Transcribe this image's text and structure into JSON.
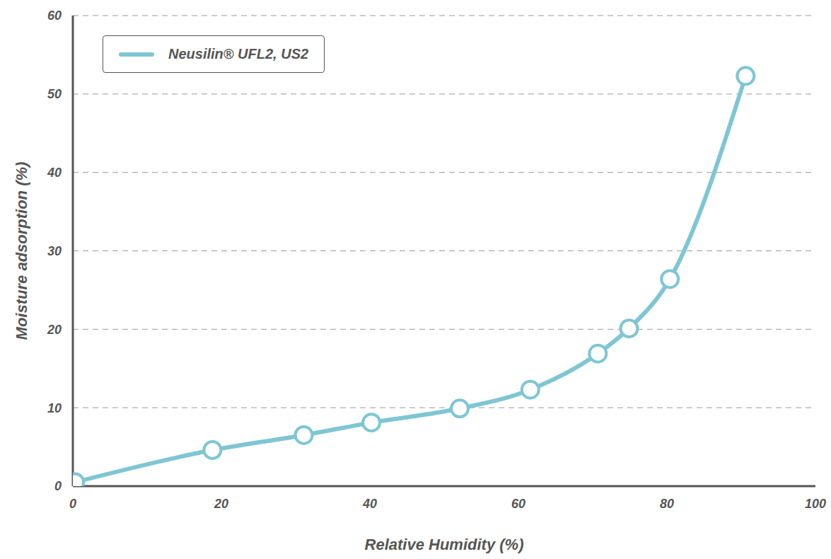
{
  "chart_data": {
    "type": "line",
    "x_label": "Relative Humidity (%)",
    "y_label": "Moisture adsorption (%)",
    "x": [
      0.3,
      18.8,
      31.1,
      40.2,
      52.1,
      61.6,
      70.7,
      74.9,
      80.4,
      90.6
    ],
    "series": [
      {
        "name": "Neusilin® UFL2, US2",
        "color": "#7fc6d3",
        "marker": "circle",
        "values": [
          0.5,
          4.6,
          6.5,
          8.1,
          9.9,
          12.3,
          16.9,
          20.1,
          26.4,
          52.3
        ]
      }
    ],
    "xlim": [
      0,
      100
    ],
    "ylim": [
      0,
      60
    ],
    "xticks": [
      0,
      20,
      40,
      60,
      80,
      100
    ],
    "yticks": [
      0,
      10,
      20,
      30,
      40,
      50,
      60
    ],
    "grid": true,
    "legend": "upper left"
  }
}
